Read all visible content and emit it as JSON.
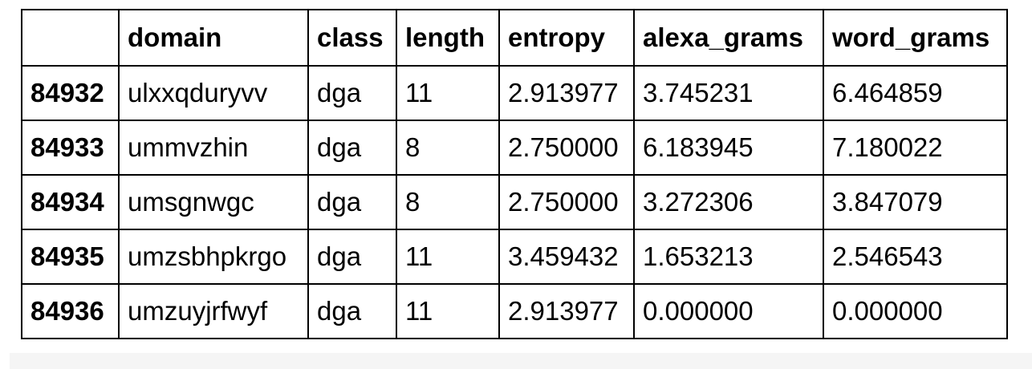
{
  "table": {
    "columns": [
      "",
      "domain",
      "class",
      "length",
      "entropy",
      "alexa_grams",
      "word_grams"
    ],
    "rows": [
      {
        "index": "84932",
        "cells": [
          "ulxxqduryvv",
          "dga",
          "11",
          "2.913977",
          "3.745231",
          "6.464859"
        ]
      },
      {
        "index": "84933",
        "cells": [
          "ummvzhin",
          "dga",
          "8",
          "2.750000",
          "6.183945",
          "7.180022"
        ]
      },
      {
        "index": "84934",
        "cells": [
          "umsgnwgc",
          "dga",
          "8",
          "2.750000",
          "3.272306",
          "3.847079"
        ]
      },
      {
        "index": "84935",
        "cells": [
          "umzsbhpkrgo",
          "dga",
          "11",
          "3.459432",
          "1.653213",
          "2.546543"
        ]
      },
      {
        "index": "84936",
        "cells": [
          "umzuyjrfwyf",
          "dga",
          "11",
          "2.913977",
          "0.000000",
          "0.000000"
        ]
      }
    ]
  }
}
